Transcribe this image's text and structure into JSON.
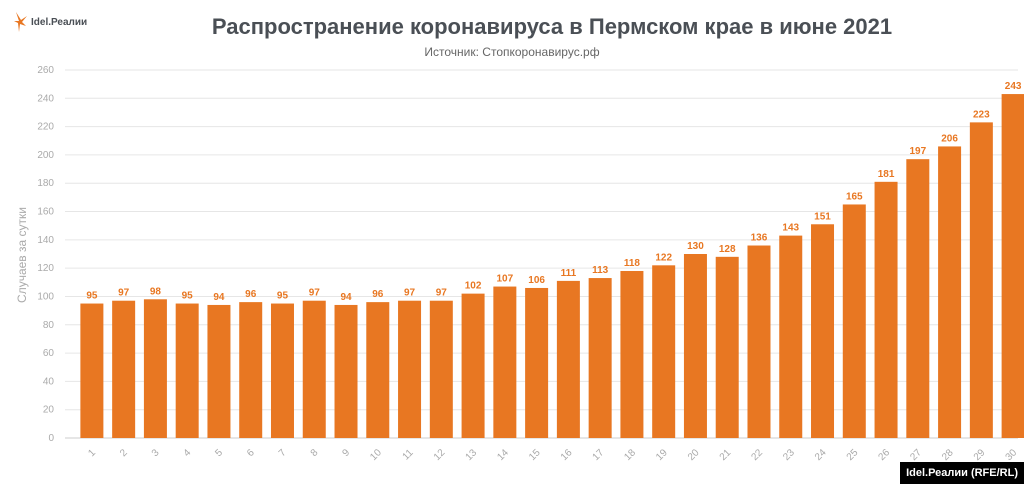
{
  "brand": {
    "logo_text": "Idel.Реалии",
    "credit": "Idel.Реалии (RFE/RL)"
  },
  "chart_data": {
    "type": "bar",
    "title": "Распространение коронавируса в Пермском крае в июне 2021",
    "subtitle": "Источник: Стопкоронавирус.рф",
    "ylabel": "Случаев за сутки",
    "xlabel": "",
    "ylim": [
      0,
      260
    ],
    "yticks": [
      0,
      20,
      40,
      60,
      80,
      100,
      120,
      140,
      160,
      180,
      200,
      220,
      240,
      260
    ],
    "categories": [
      "1",
      "2",
      "3",
      "4",
      "5",
      "6",
      "7",
      "8",
      "9",
      "10",
      "11",
      "12",
      "13",
      "14",
      "15",
      "16",
      "17",
      "18",
      "19",
      "20",
      "21",
      "22",
      "23",
      "24",
      "25",
      "26",
      "27",
      "28",
      "29",
      "30"
    ],
    "values": [
      95,
      97,
      98,
      95,
      94,
      96,
      95,
      97,
      94,
      96,
      97,
      97,
      102,
      107,
      106,
      111,
      113,
      118,
      122,
      130,
      128,
      136,
      143,
      151,
      165,
      181,
      197,
      206,
      223,
      243
    ],
    "grid": true,
    "bar_color": "#e87722"
  }
}
